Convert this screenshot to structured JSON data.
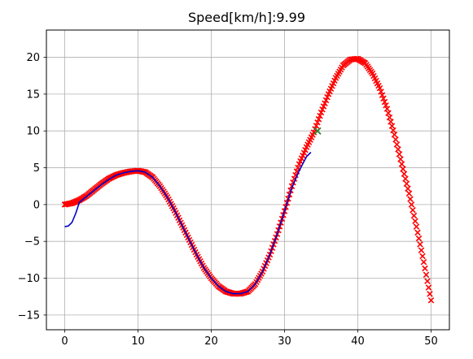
{
  "chart_data": {
    "type": "line",
    "title": "Speed[km/h]:9.99",
    "xlabel": "",
    "ylabel": "",
    "xlim": [
      -2.5,
      52.5
    ],
    "ylim": [
      -17.0,
      23.7
    ],
    "x_ticks": [
      0,
      10,
      20,
      30,
      40,
      50
    ],
    "y_ticks": [
      -15,
      -10,
      -5,
      0,
      5,
      10,
      15,
      20
    ],
    "grid": true,
    "colors": {
      "reference_course": "#ff0000",
      "trajectory": "#0000cc",
      "target_marker": "#2e7d32",
      "grid": "#b0b0b0",
      "axes": "#000000"
    },
    "series": [
      {
        "role": "reference_course",
        "style": "dotted-red-x",
        "x": [
          0,
          1,
          2,
          3,
          4,
          5,
          6,
          7,
          8,
          9,
          10,
          11,
          12,
          13,
          14,
          15,
          16,
          17,
          18,
          19,
          20,
          21,
          22,
          23,
          24,
          25,
          26,
          27,
          28,
          29,
          30,
          31,
          32,
          33,
          34,
          35,
          36,
          37,
          38,
          39,
          40,
          41,
          42,
          43,
          44,
          45,
          46,
          47,
          48,
          49,
          50
        ],
        "y": [
          0.0,
          0.2,
          0.6,
          1.2,
          2.0,
          2.8,
          3.5,
          4.0,
          4.3,
          4.5,
          4.6,
          4.4,
          3.7,
          2.5,
          1.0,
          -0.8,
          -2.8,
          -4.8,
          -6.8,
          -8.6,
          -10.0,
          -11.1,
          -11.8,
          -12.1,
          -12.1,
          -11.8,
          -10.8,
          -9.1,
          -6.8,
          -4.0,
          -0.9,
          2.5,
          5.5,
          7.8,
          9.8,
          12.5,
          15.0,
          17.2,
          18.9,
          19.7,
          19.8,
          19.2,
          17.8,
          15.8,
          13.0,
          9.5,
          5.5,
          1.5,
          -3.0,
          -7.8,
          -13.0
        ]
      },
      {
        "role": "trajectory",
        "style": "solid-blue",
        "x": [
          0,
          0.5,
          1.0,
          1.5,
          2,
          3,
          4,
          5,
          6,
          7,
          8,
          9,
          10,
          11,
          12,
          13,
          14,
          15,
          16,
          17,
          18,
          19,
          20,
          21,
          22,
          23,
          24,
          25,
          26,
          27,
          28,
          29,
          30,
          31,
          32,
          33,
          33.6
        ],
        "y": [
          -3.0,
          -2.9,
          -2.4,
          -1.2,
          0.3,
          1.1,
          1.9,
          2.7,
          3.4,
          4.0,
          4.3,
          4.5,
          4.6,
          4.4,
          3.7,
          2.5,
          1.0,
          -0.8,
          -2.8,
          -4.8,
          -6.8,
          -8.6,
          -10.0,
          -11.1,
          -11.8,
          -12.1,
          -12.1,
          -11.8,
          -10.8,
          -9.1,
          -6.8,
          -4.0,
          -0.9,
          2.3,
          4.6,
          6.5,
          7.1
        ]
      }
    ],
    "target_marker": {
      "x": 34.5,
      "y": 10.0
    }
  }
}
